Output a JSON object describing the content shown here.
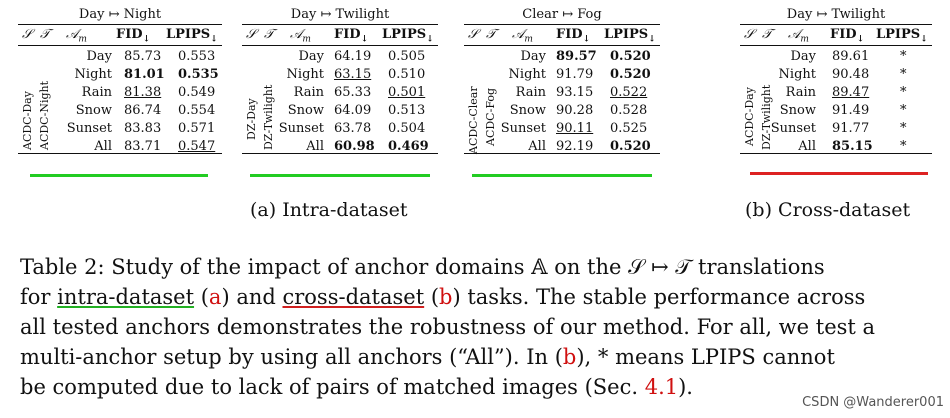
{
  "tables": [
    {
      "title": "Day ↦ Night",
      "labels": [
        "ACDC-Day",
        "ACDC-Night"
      ],
      "bar_color": "#22cc22",
      "rows": [
        {
          "domain": "Day",
          "fid": "85.73",
          "lpips": "0.553",
          "fid_style": "",
          "lpips_style": ""
        },
        {
          "domain": "Night",
          "fid": "81.01",
          "lpips": "0.535",
          "fid_style": "bold",
          "lpips_style": "bold"
        },
        {
          "domain": "Rain",
          "fid": "81.38",
          "lpips": "0.549",
          "fid_style": "ul",
          "lpips_style": ""
        },
        {
          "domain": "Snow",
          "fid": "86.74",
          "lpips": "0.554",
          "fid_style": "",
          "lpips_style": ""
        },
        {
          "domain": "Sunset",
          "fid": "83.83",
          "lpips": "0.571",
          "fid_style": "",
          "lpips_style": ""
        },
        {
          "domain": "All",
          "fid": "83.71",
          "lpips": "0.547",
          "fid_style": "",
          "lpips_style": "ul"
        }
      ]
    },
    {
      "title": "Day ↦ Twilight",
      "labels": [
        "DZ-Day",
        "DZ-Twilight"
      ],
      "bar_color": "#22cc22",
      "rows": [
        {
          "domain": "Day",
          "fid": "64.19",
          "lpips": "0.505",
          "fid_style": "",
          "lpips_style": ""
        },
        {
          "domain": "Night",
          "fid": "63.15",
          "lpips": "0.510",
          "fid_style": "ul",
          "lpips_style": ""
        },
        {
          "domain": "Rain",
          "fid": "65.33",
          "lpips": "0.501",
          "fid_style": "",
          "lpips_style": "ul"
        },
        {
          "domain": "Snow",
          "fid": "64.09",
          "lpips": "0.513",
          "fid_style": "",
          "lpips_style": ""
        },
        {
          "domain": "Sunset",
          "fid": "63.78",
          "lpips": "0.504",
          "fid_style": "",
          "lpips_style": ""
        },
        {
          "domain": "All",
          "fid": "60.98",
          "lpips": "0.469",
          "fid_style": "bold",
          "lpips_style": "bold"
        }
      ]
    },
    {
      "title": "Clear ↦ Fog",
      "labels": [
        "ACDC-Clear",
        "ACDC-Fog"
      ],
      "bar_color": "#22cc22",
      "rows": [
        {
          "domain": "Day",
          "fid": "89.57",
          "lpips": "0.520",
          "fid_style": "bold",
          "lpips_style": "bold"
        },
        {
          "domain": "Night",
          "fid": "91.79",
          "lpips": "0.520",
          "fid_style": "",
          "lpips_style": "bold"
        },
        {
          "domain": "Rain",
          "fid": "93.15",
          "lpips": "0.522",
          "fid_style": "",
          "lpips_style": "ul"
        },
        {
          "domain": "Snow",
          "fid": "90.28",
          "lpips": "0.528",
          "fid_style": "",
          "lpips_style": ""
        },
        {
          "domain": "Sunset",
          "fid": "90.11",
          "lpips": "0.525",
          "fid_style": "ul",
          "lpips_style": ""
        },
        {
          "domain": "All",
          "fid": "92.19",
          "lpips": "0.520",
          "fid_style": "",
          "lpips_style": "bold"
        }
      ]
    },
    {
      "title": "Day ↦ Twilight",
      "labels": [
        "ACDC-Day",
        "DZ-Twilight"
      ],
      "bar_color": "#dd2222",
      "rows": [
        {
          "domain": "Day",
          "fid": "89.61",
          "lpips": "*",
          "fid_style": "",
          "lpips_style": ""
        },
        {
          "domain": "Night",
          "fid": "90.48",
          "lpips": "*",
          "fid_style": "",
          "lpips_style": ""
        },
        {
          "domain": "Rain",
          "fid": "89.47",
          "lpips": "*",
          "fid_style": "ul",
          "lpips_style": ""
        },
        {
          "domain": "Snow",
          "fid": "91.49",
          "lpips": "*",
          "fid_style": "",
          "lpips_style": ""
        },
        {
          "domain": "Sunset",
          "fid": "91.77",
          "lpips": "*",
          "fid_style": "",
          "lpips_style": ""
        },
        {
          "domain": "All",
          "fid": "85.15",
          "lpips": "*",
          "fid_style": "bold",
          "lpips_style": ""
        }
      ]
    }
  ],
  "header": {
    "s": "𝒮",
    "t": "𝒯",
    "am": "𝒜",
    "am_sub": "m",
    "fid": "FID",
    "lpips": "LPIPS",
    "down": "↓"
  },
  "subcaptions": {
    "a": "(a) Intra-dataset",
    "b": "(b) Cross-dataset"
  },
  "caption": {
    "l1": "Table 2: Study of the impact of anchor domains 𝔸 on the 𝒮 ↦ 𝒯 translations",
    "l2_a": "for ",
    "l2_b": "intra-dataset",
    "l2_c": " (",
    "l2_d": "a",
    "l2_e": ") and ",
    "l2_f": "cross-dataset",
    "l2_g": " (",
    "l2_h": "b",
    "l2_i": ") tasks. The stable performance across",
    "l3": "all tested anchors demonstrates the robustness of our method. For all, we test a",
    "l4_a": "multi-anchor setup by using all anchors (“All”). In (",
    "l4_b": "b",
    "l4_c": "), * means LPIPS cannot",
    "l5_a": "be computed due to lack of pairs of matched images (Sec. ",
    "l5_b": "4.1",
    "l5_c": ")."
  },
  "watermark": "CSDN @Wanderer001"
}
